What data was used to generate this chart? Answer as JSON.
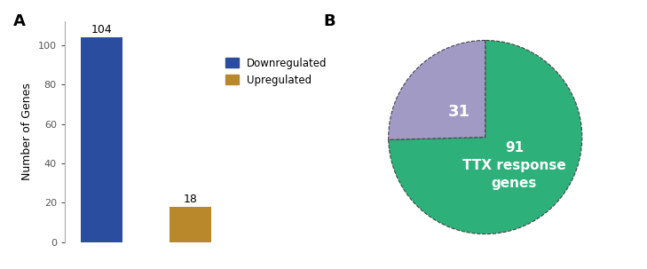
{
  "bar_values": [
    104,
    18
  ],
  "bar_colors": [
    "#2b4da0",
    "#b8882a"
  ],
  "bar_ylabel": "Number of Genes",
  "bar_ylim": [
    0,
    112
  ],
  "bar_yticks": [
    0,
    20,
    40,
    60,
    80,
    100
  ],
  "legend_labels": [
    "Downregulated",
    "Upregulated"
  ],
  "legend_colors": [
    "#2b4da0",
    "#b8882a"
  ],
  "pie_values": [
    91,
    31
  ],
  "pie_colors": [
    "#2db07a",
    "#a09ac5"
  ],
  "panel_a_label": "A",
  "panel_b_label": "B",
  "background_color": "#ffffff",
  "bar_annotation_fontsize": 9,
  "legend_fontsize": 8.5,
  "ylabel_fontsize": 9,
  "ytick_fontsize": 8,
  "panel_label_fontsize": 13
}
